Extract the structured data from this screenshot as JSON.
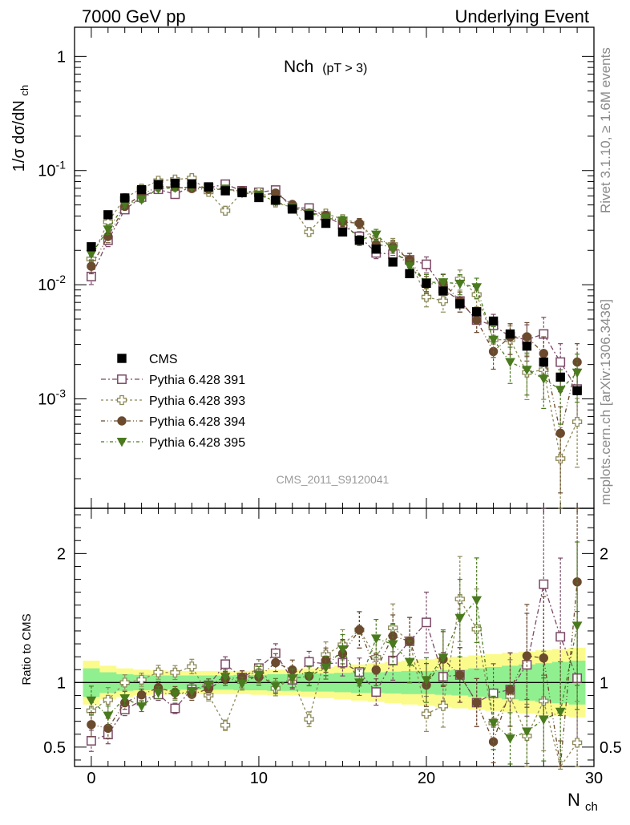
{
  "header": {
    "left": "7000 GeV pp",
    "right": "Underlying Event"
  },
  "side_labels": {
    "rivet": "Rivet 3.1.10, ≥ 1.6M events",
    "mcplots": "mcplots.cern.ch [arXiv:1306.3436]"
  },
  "colors": {
    "cms": "#000000",
    "p391": "#7a4a66",
    "p393": "#8e8a5a",
    "p394": "#6b4a2e",
    "p395": "#4a7a1e",
    "band_inner": "#90f090",
    "band_outer": "#fbfb8c"
  },
  "chart_data": {
    "type": "scatter",
    "title_main": "Nch",
    "title_sub": "(pT >  3)",
    "analysis_id": "CMS_2011_S9120041",
    "ylabel_top": "1/σ dσ/dN",
    "ylabel_top_sub": "ch",
    "ylabel_bottom": "Ratio to CMS",
    "xlabel": "N",
    "xlabel_sub": "ch",
    "xlim": [
      -1,
      30
    ],
    "ylim_top": [
      0.00011,
      1.8
    ],
    "ylim_bottom": [
      0.35,
      2.35
    ],
    "yscale_top": "log",
    "x_ticks": [
      "0",
      "10",
      "20",
      "30"
    ],
    "y_ticks_top": [
      "10",
      "10",
      "10",
      "1"
    ],
    "y_ticks_top_exp": [
      "-3",
      "-2",
      "-1",
      ""
    ],
    "y_ticks_bottom": [
      "0.5",
      "1",
      "2"
    ],
    "legend_position": "bottom-left",
    "x": [
      0,
      1,
      2,
      3,
      4,
      5,
      6,
      7,
      8,
      9,
      10,
      11,
      12,
      13,
      14,
      15,
      16,
      17,
      18,
      19,
      20,
      21,
      22,
      23,
      24,
      25,
      26,
      27,
      28,
      29
    ],
    "cms": {
      "name": "CMS",
      "values": [
        0.0215,
        0.041,
        0.0575,
        0.068,
        0.0755,
        0.0775,
        0.0765,
        0.072,
        0.0665,
        0.064,
        0.058,
        0.055,
        0.046,
        0.0405,
        0.0345,
        0.029,
        0.0245,
        0.0205,
        0.0158,
        0.0125,
        0.0103,
        0.0088,
        0.0068,
        0.0058,
        0.0048,
        0.0037,
        0.0029,
        0.0021,
        0.00155,
        0.00118
      ],
      "band_inner": [
        0.11,
        0.08,
        0.065,
        0.06,
        0.055,
        0.055,
        0.055,
        0.055,
        0.055,
        0.06,
        0.06,
        0.065,
        0.065,
        0.07,
        0.07,
        0.075,
        0.08,
        0.08,
        0.085,
        0.09,
        0.09,
        0.095,
        0.1,
        0.11,
        0.12,
        0.13,
        0.14,
        0.15,
        0.16,
        0.17
      ],
      "band_outer": [
        0.17,
        0.13,
        0.11,
        0.1,
        0.095,
        0.09,
        0.09,
        0.09,
        0.09,
        0.09,
        0.095,
        0.1,
        0.1,
        0.11,
        0.12,
        0.13,
        0.14,
        0.15,
        0.16,
        0.17,
        0.18,
        0.19,
        0.2,
        0.21,
        0.22,
        0.23,
        0.24,
        0.25,
        0.26,
        0.27
      ]
    },
    "series": [
      {
        "name": "Pythia 6.428 391",
        "marker": "open-square",
        "color_key": "p391",
        "values": [
          0.0118,
          0.0245,
          0.0455,
          0.0585,
          0.0685,
          0.062,
          0.0725,
          0.0705,
          0.076,
          0.0665,
          0.0645,
          0.0675,
          0.047,
          0.047,
          0.0395,
          0.0335,
          0.0265,
          0.019,
          0.0185,
          0.0165,
          0.0151,
          0.0092,
          0.0072,
          0.0049,
          0.0044,
          0.0035,
          0.0033,
          0.0037,
          0.0021,
          0.00122
        ],
        "rel_err": [
          0.15,
          0.12,
          0.06,
          0.05,
          0.05,
          0.05,
          0.05,
          0.05,
          0.05,
          0.05,
          0.06,
          0.06,
          0.07,
          0.07,
          0.08,
          0.09,
          0.1,
          0.11,
          0.13,
          0.14,
          0.16,
          0.18,
          0.2,
          0.22,
          0.25,
          0.3,
          0.35,
          0.4,
          0.45,
          0.5
        ]
      },
      {
        "name": "Pythia 6.428 393",
        "marker": "open-cross",
        "color_key": "p393",
        "values": [
          0.0168,
          0.0355,
          0.0575,
          0.0695,
          0.0815,
          0.0835,
          0.086,
          0.065,
          0.0445,
          0.0645,
          0.0645,
          0.0525,
          0.0475,
          0.029,
          0.042,
          0.0375,
          0.0345,
          0.0245,
          0.0225,
          0.0165,
          0.0078,
          0.0072,
          0.0112,
          0.0082,
          0.0033,
          0.0033,
          0.0017,
          0.0018,
          0.0003,
          0.00063
        ],
        "rel_err": [
          0.13,
          0.11,
          0.06,
          0.05,
          0.05,
          0.05,
          0.05,
          0.05,
          0.06,
          0.05,
          0.06,
          0.06,
          0.07,
          0.08,
          0.08,
          0.09,
          0.1,
          0.11,
          0.13,
          0.14,
          0.18,
          0.2,
          0.2,
          0.22,
          0.3,
          0.32,
          0.42,
          0.45,
          0.7,
          0.6
        ]
      },
      {
        "name": "Pythia 6.428 394",
        "marker": "filled-circle",
        "color_key": "p394",
        "values": [
          0.0145,
          0.0265,
          0.0485,
          0.0615,
          0.0725,
          0.0715,
          0.0695,
          0.0685,
          0.0685,
          0.0665,
          0.0605,
          0.0635,
          0.0505,
          0.0425,
          0.0405,
          0.0355,
          0.0345,
          0.0225,
          0.0215,
          0.0165,
          0.0101,
          0.0104,
          0.0072,
          0.0049,
          0.0026,
          0.0035,
          0.0035,
          0.0025,
          0.0005,
          0.0021
        ],
        "rel_err": [
          0.14,
          0.12,
          0.06,
          0.05,
          0.05,
          0.05,
          0.05,
          0.05,
          0.05,
          0.05,
          0.06,
          0.06,
          0.07,
          0.07,
          0.08,
          0.09,
          0.1,
          0.11,
          0.12,
          0.14,
          0.17,
          0.18,
          0.2,
          0.22,
          0.3,
          0.3,
          0.33,
          0.4,
          0.7,
          0.45
        ]
      },
      {
        "name": "Pythia 6.428 395",
        "marker": "filled-triangle-down",
        "color_key": "p395",
        "values": [
          0.0185,
          0.0305,
          0.0505,
          0.0555,
          0.0695,
          0.0705,
          0.0715,
          0.0705,
          0.0695,
          0.0635,
          0.0615,
          0.0535,
          0.0475,
          0.0425,
          0.0385,
          0.0365,
          0.0245,
          0.0275,
          0.0205,
          0.0145,
          0.0105,
          0.0105,
          0.0102,
          0.0095,
          0.0033,
          0.0021,
          0.0018,
          0.0015,
          0.0012,
          0.0017
        ],
        "rel_err": [
          0.13,
          0.1,
          0.06,
          0.05,
          0.05,
          0.05,
          0.05,
          0.05,
          0.05,
          0.05,
          0.06,
          0.06,
          0.07,
          0.07,
          0.08,
          0.09,
          0.1,
          0.11,
          0.12,
          0.14,
          0.17,
          0.18,
          0.2,
          0.2,
          0.3,
          0.35,
          0.4,
          0.45,
          0.5,
          0.45
        ]
      }
    ]
  }
}
